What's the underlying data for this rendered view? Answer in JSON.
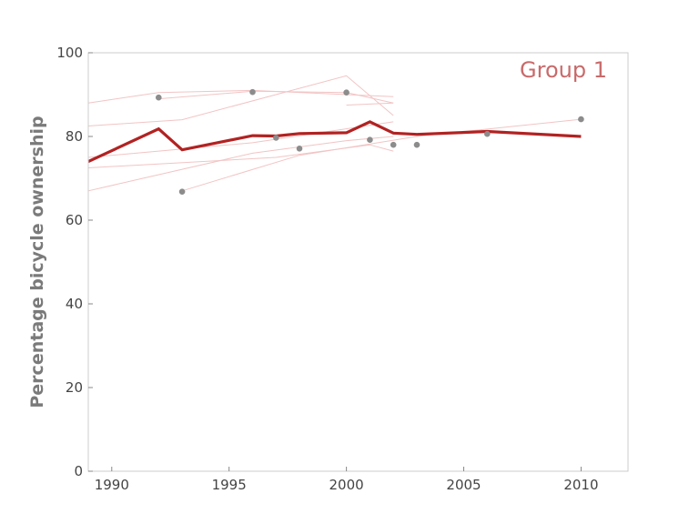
{
  "chart_data": {
    "type": "line",
    "title": "",
    "annotation": "Group 1",
    "xlabel": "",
    "ylabel": "Percentage bicycle ownership",
    "xlim": [
      1989,
      2012
    ],
    "ylim": [
      0,
      100
    ],
    "xticks": [
      1990,
      1995,
      2000,
      2005,
      2010
    ],
    "yticks": [
      0,
      20,
      40,
      60,
      80,
      100
    ],
    "grid": false,
    "colors": {
      "main_line": "#b22222",
      "faint_lines": "#f2c4c4",
      "points": "#8c8c8c",
      "annotation": "#c96a6a",
      "axes": "#cccccc"
    },
    "series": [
      {
        "role": "average",
        "x": [
          1989,
          1992,
          1993,
          1996,
          1997,
          1998,
          2000,
          2001,
          2002,
          2003,
          2006,
          2010
        ],
        "y": [
          74,
          81.8,
          76.8,
          80.2,
          80.1,
          80.7,
          80.9,
          83.5,
          80.8,
          80.5,
          81.2,
          80
        ]
      },
      {
        "role": "observations",
        "x": [
          1992,
          1993,
          1996,
          1997,
          1998,
          2000,
          2001,
          2002,
          2003,
          2006,
          2010
        ],
        "y": [
          89.3,
          66.8,
          90.6,
          79.7,
          77.1,
          90.5,
          79.2,
          78,
          78,
          80.6,
          84.1
        ]
      },
      {
        "role": "faint",
        "x": [
          1989,
          1992,
          1996,
          2002
        ],
        "y": [
          88,
          90.5,
          91,
          89.5
        ]
      },
      {
        "role": "faint",
        "x": [
          1992,
          1996,
          2000,
          2002
        ],
        "y": [
          89,
          90.8,
          90.5,
          88
        ]
      },
      {
        "role": "faint",
        "x": [
          1989,
          1993,
          2000,
          2002
        ],
        "y": [
          82.5,
          84,
          94.5,
          85
        ]
      },
      {
        "role": "faint",
        "x": [
          1989,
          1996,
          2000,
          2002
        ],
        "y": [
          67,
          76,
          79,
          80
        ]
      },
      {
        "role": "faint",
        "x": [
          1989,
          1997,
          2001,
          2002
        ],
        "y": [
          72.5,
          75,
          78,
          76.5
        ]
      },
      {
        "role": "faint",
        "x": [
          1993,
          1998,
          2003,
          2010
        ],
        "y": [
          67,
          75.5,
          80,
          84.1
        ]
      },
      {
        "role": "faint",
        "x": [
          1989,
          1996,
          2002
        ],
        "y": [
          75,
          78.5,
          83.5
        ]
      },
      {
        "role": "faint",
        "x": [
          2000,
          2002
        ],
        "y": [
          87.5,
          88
        ]
      }
    ]
  }
}
